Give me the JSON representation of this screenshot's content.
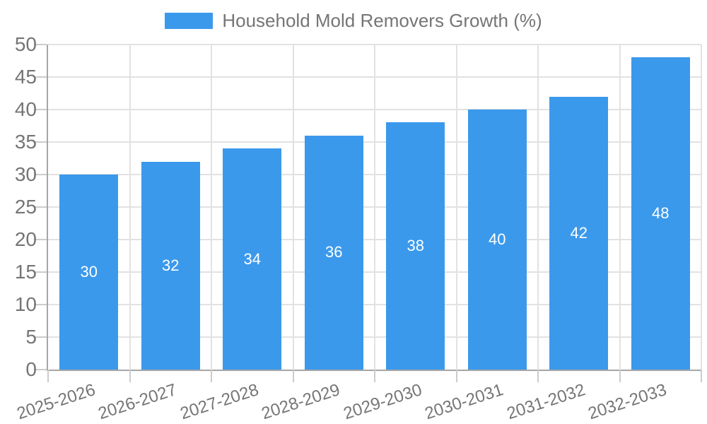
{
  "legend": {
    "label": "Household Mold Removers Growth (%)"
  },
  "chart_data": {
    "type": "bar",
    "title": "Household Mold Removers Growth (%)",
    "categories": [
      "2025-2026",
      "2026-2027",
      "2027-2028",
      "2028-2029",
      "2029-2030",
      "2030-2031",
      "2031-2032",
      "2032-2033"
    ],
    "values": [
      30,
      32,
      34,
      36,
      38,
      40,
      42,
      48
    ],
    "series": [
      {
        "name": "Household Mold Removers Growth (%)",
        "values": [
          30,
          32,
          34,
          36,
          38,
          40,
          42,
          48
        ]
      }
    ],
    "xlabel": "",
    "ylabel": "",
    "ylim": [
      0,
      50
    ],
    "yticks": [
      0,
      5,
      10,
      15,
      20,
      25,
      30,
      35,
      40,
      45,
      50
    ],
    "grid": true,
    "legend_position": "top-center",
    "bar_value_labels": "inside-center",
    "colors": {
      "bar": "#3B99EC",
      "bar_label": "#FFFFFF",
      "axis_text": "#757575",
      "grid_line": "#E2E2E2",
      "axis_line": "#A6A6A6",
      "tick": "#CCCCCC",
      "background": "#FFFFFF"
    }
  }
}
